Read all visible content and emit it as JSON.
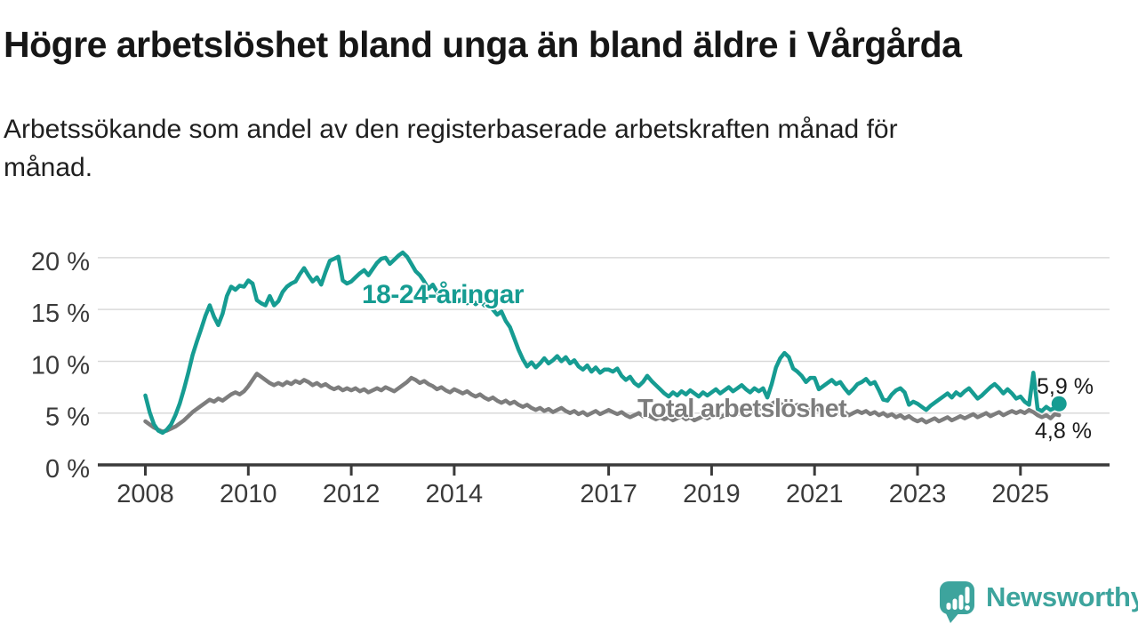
{
  "header": {
    "title": "Högre arbetslöshet bland unga än bland äldre i Vårgårda",
    "subtitle_lines": [
      "Arbetssökande som andel av den registerbaserade arbetskraften månad för",
      "månad."
    ]
  },
  "colors": {
    "title": "#161616",
    "subtitle": "#1f1f1f",
    "axis": "#3a3a3a",
    "grid": "#d9d9d9",
    "young": "#169c92",
    "total": "#7d7d7d",
    "end_label": "#1a1a1a",
    "logo": "#3da49d"
  },
  "chart_data": {
    "type": "line",
    "frequency": "monthly",
    "x_start": "2008-01",
    "x_end": "2025-10",
    "ylim": [
      0,
      21.5
    ],
    "grid": true,
    "legend_position": "inline-labels",
    "y_axis": {
      "ticks": [
        {
          "value": 20,
          "label": "20 %"
        },
        {
          "value": 15,
          "label": "15 %"
        },
        {
          "value": 10,
          "label": "10 %"
        },
        {
          "value": 5,
          "label": "5 %"
        },
        {
          "value": 0,
          "label": "0 %"
        }
      ]
    },
    "x_axis": {
      "ticks": [
        {
          "year": 2008,
          "label": "2008"
        },
        {
          "year": 2010,
          "label": "2010"
        },
        {
          "year": 2012,
          "label": "2012"
        },
        {
          "year": 2014,
          "label": "2014"
        },
        {
          "year": 2017,
          "label": "2017"
        },
        {
          "year": 2019,
          "label": "2019"
        },
        {
          "year": 2021,
          "label": "2021"
        },
        {
          "year": 2023,
          "label": "2023"
        },
        {
          "year": 2025,
          "label": "2025"
        }
      ]
    },
    "series": [
      {
        "name": "18-24-åringar",
        "color": "#169c92",
        "end_value_label": "5,9 %",
        "end_dot": true,
        "values": [
          6.7,
          5.1,
          3.9,
          3.3,
          3.1,
          3.4,
          3.9,
          4.8,
          5.9,
          7.3,
          8.9,
          10.6,
          11.9,
          13.1,
          14.4,
          15.4,
          14.3,
          13.5,
          14.6,
          16.3,
          17.2,
          16.9,
          17.3,
          17.2,
          17.8,
          17.5,
          15.9,
          15.6,
          15.4,
          16.3,
          15.4,
          15.8,
          16.7,
          17.2,
          17.5,
          17.7,
          18.4,
          19.0,
          18.3,
          17.7,
          18.1,
          17.4,
          18.6,
          19.7,
          19.9,
          20.1,
          17.8,
          17.5,
          17.7,
          18.1,
          18.5,
          18.8,
          18.3,
          18.9,
          19.5,
          19.9,
          20.0,
          19.4,
          19.8,
          20.2,
          20.5,
          20.1,
          19.4,
          18.7,
          18.3,
          17.7,
          17.0,
          17.4,
          16.7,
          16.2,
          16.6,
          16.0,
          16.3,
          15.8,
          16.1,
          15.6,
          16.0,
          15.5,
          15.9,
          15.4,
          15.7,
          15.0,
          14.5,
          14.8,
          13.9,
          13.3,
          12.2,
          11.1,
          10.2,
          9.5,
          9.9,
          9.4,
          9.8,
          10.3,
          9.8,
          10.1,
          10.5,
          10.0,
          10.4,
          9.8,
          10.1,
          9.5,
          9.2,
          9.6,
          9.0,
          9.4,
          8.9,
          9.2,
          9.2,
          9.0,
          9.3,
          8.6,
          8.2,
          8.5,
          7.9,
          7.6,
          8.0,
          8.6,
          8.1,
          7.7,
          7.3,
          6.9,
          6.6,
          7.0,
          6.7,
          7.1,
          6.8,
          7.2,
          6.9,
          6.6,
          7.0,
          6.7,
          7.0,
          7.3,
          6.9,
          7.2,
          7.5,
          7.1,
          7.4,
          7.7,
          7.3,
          7.0,
          7.4,
          7.1,
          7.4,
          6.5,
          7.8,
          9.4,
          10.3,
          10.8,
          10.4,
          9.3,
          9.0,
          8.6,
          8.0,
          8.4,
          8.4,
          7.3,
          7.6,
          7.9,
          8.2,
          7.8,
          8.0,
          7.4,
          6.9,
          7.3,
          7.8,
          8.0,
          8.3,
          7.8,
          8.0,
          7.2,
          6.3,
          6.2,
          6.8,
          7.2,
          7.4,
          7.0,
          5.8,
          6.1,
          5.9,
          5.6,
          5.3,
          5.7,
          6.0,
          6.3,
          6.6,
          6.9,
          6.5,
          7.0,
          6.7,
          7.1,
          7.4,
          6.9,
          6.4,
          6.7,
          7.1,
          7.5,
          7.8,
          7.4,
          6.9,
          7.3,
          6.9,
          6.4,
          6.6,
          6.1,
          5.8,
          8.9,
          5.4,
          5.2,
          5.6,
          5.3,
          5.5,
          5.9
        ]
      },
      {
        "name": "Total arbetslöshet",
        "color": "#7d7d7d",
        "end_value_label": "4,8 %",
        "end_dot": false,
        "values": [
          4.2,
          3.9,
          3.6,
          3.4,
          3.2,
          3.3,
          3.5,
          3.7,
          4.0,
          4.3,
          4.7,
          5.1,
          5.4,
          5.7,
          6.0,
          6.3,
          6.1,
          6.4,
          6.2,
          6.5,
          6.8,
          7.0,
          6.8,
          7.1,
          7.6,
          8.2,
          8.8,
          8.5,
          8.2,
          7.9,
          7.7,
          7.9,
          7.7,
          8.0,
          7.8,
          8.1,
          7.9,
          8.2,
          8.0,
          7.7,
          7.9,
          7.6,
          7.8,
          7.5,
          7.3,
          7.5,
          7.2,
          7.4,
          7.2,
          7.4,
          7.1,
          7.3,
          7.0,
          7.2,
          7.4,
          7.2,
          7.5,
          7.3,
          7.1,
          7.4,
          7.7,
          8.0,
          8.4,
          8.2,
          7.9,
          8.1,
          7.8,
          7.6,
          7.3,
          7.5,
          7.2,
          7.0,
          7.3,
          7.1,
          6.9,
          7.1,
          6.8,
          6.6,
          6.8,
          6.5,
          6.3,
          6.5,
          6.2,
          6.0,
          6.2,
          5.9,
          6.1,
          5.8,
          5.6,
          5.8,
          5.5,
          5.3,
          5.5,
          5.2,
          5.4,
          5.1,
          5.3,
          5.5,
          5.2,
          5.0,
          5.2,
          4.9,
          5.1,
          4.8,
          5.0,
          5.2,
          4.9,
          5.1,
          5.3,
          5.1,
          4.9,
          5.1,
          4.8,
          4.6,
          4.8,
          5.0,
          4.7,
          4.9,
          4.6,
          4.4,
          4.6,
          4.4,
          4.6,
          4.3,
          4.5,
          4.7,
          4.4,
          4.6,
          4.3,
          4.5,
          4.7,
          4.5,
          4.7,
          4.9,
          4.6,
          4.8,
          5.0,
          4.7,
          4.9,
          5.1,
          4.8,
          5.0,
          5.2,
          5.4,
          5.6,
          5.4,
          5.9,
          6.1,
          5.9,
          5.7,
          5.9,
          5.6,
          5.8,
          5.5,
          5.7,
          5.4,
          5.6,
          5.3,
          5.5,
          5.2,
          5.4,
          5.1,
          4.9,
          5.1,
          4.8,
          5.0,
          5.2,
          5.0,
          5.2,
          4.9,
          5.1,
          4.8,
          5.0,
          4.7,
          4.9,
          4.6,
          4.8,
          4.5,
          4.7,
          4.4,
          4.2,
          4.4,
          4.1,
          4.3,
          4.5,
          4.2,
          4.4,
          4.6,
          4.3,
          4.5,
          4.7,
          4.5,
          4.7,
          4.9,
          4.6,
          4.8,
          5.0,
          4.7,
          4.9,
          5.1,
          4.8,
          5.0,
          5.2,
          5.0,
          5.2,
          5.0,
          5.3,
          5.1,
          4.8,
          4.6,
          4.8,
          4.5,
          4.9,
          4.8
        ]
      }
    ]
  },
  "logo": {
    "text": "Newsworthy"
  }
}
